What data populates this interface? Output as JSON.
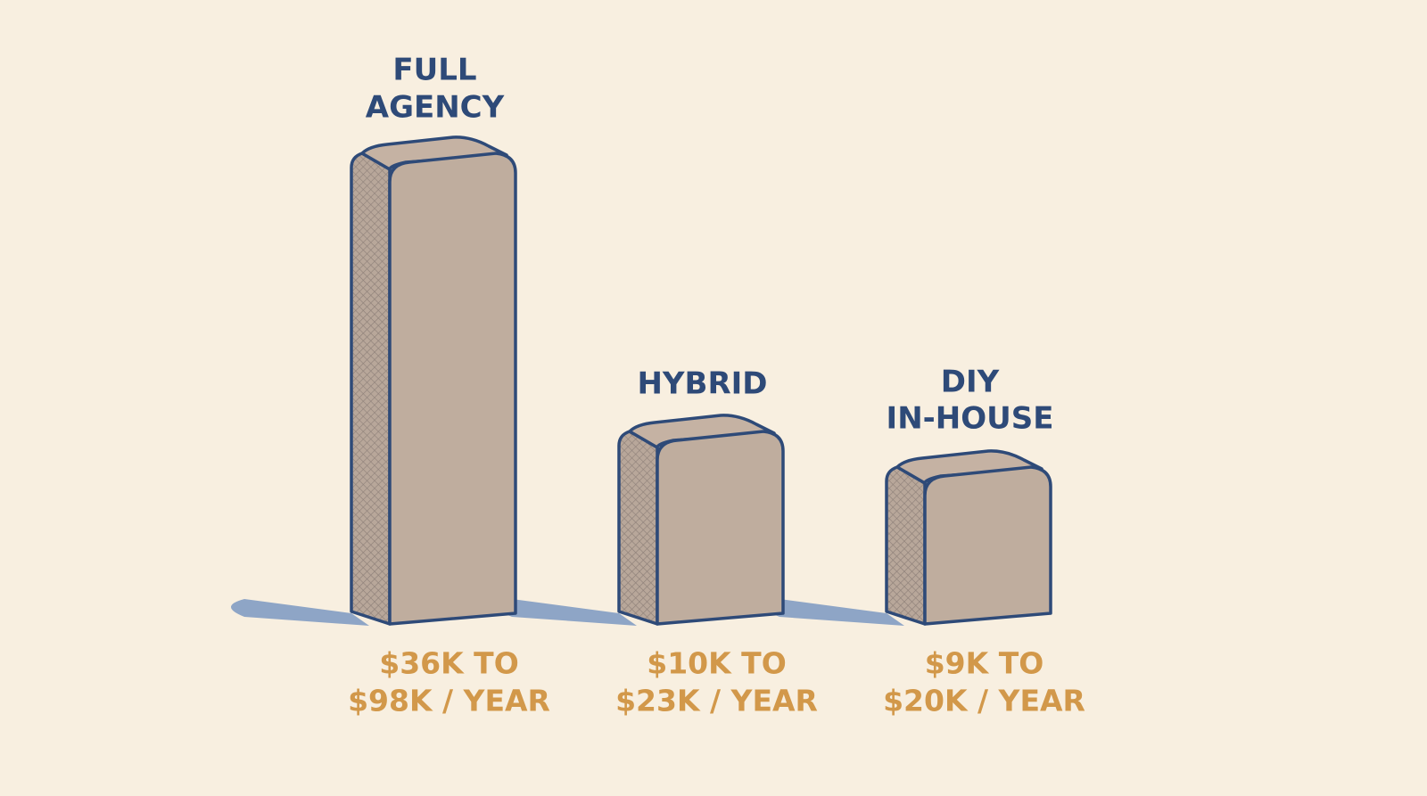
{
  "items": [
    {
      "label_lines": [
        "FULL",
        "AGENCY"
      ],
      "cost_lines": [
        "$36K TO",
        "$98K / YEAR"
      ]
    },
    {
      "label_lines": [
        "HYBRID"
      ],
      "cost_lines": [
        "$10K TO",
        "$23K / YEAR"
      ]
    },
    {
      "label_lines": [
        "DIY",
        "IN-HOUSE"
      ],
      "cost_lines": [
        "$9K TO",
        "$20K / YEAR"
      ]
    }
  ]
}
